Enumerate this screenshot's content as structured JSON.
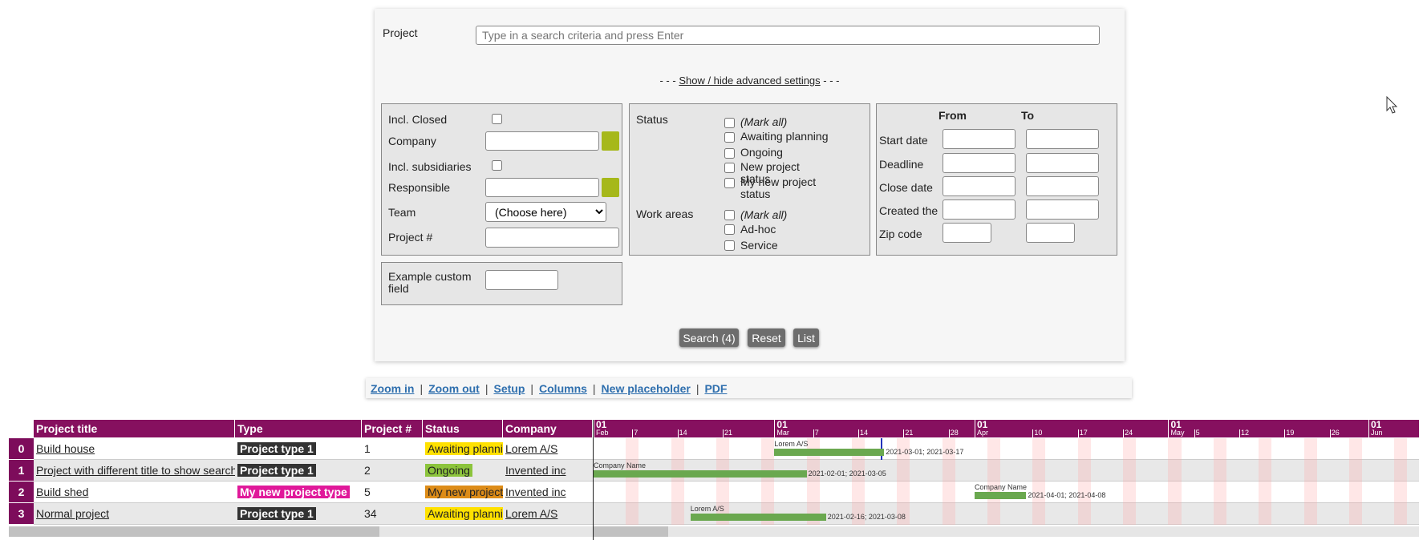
{
  "search": {
    "project_label": "Project",
    "project_placeholder": "Type in a search criteria and press Enter",
    "toggle_prefix": "- - -",
    "toggle_link": "Show / hide advanced settings",
    "toggle_suffix": "- - -",
    "general": {
      "incl_closed": "Incl. Closed",
      "company": "Company",
      "incl_subsidiaries": "Incl. subsidiaries",
      "responsible": "Responsible",
      "team": "Team",
      "team_choice": "(Choose here)",
      "project_no": "Project #"
    },
    "custom_field": "Example custom field",
    "status": {
      "label": "Status",
      "options": [
        "(Mark all)",
        "Awaiting planning",
        "Ongoing",
        "New project status",
        "My new project status"
      ]
    },
    "work_areas": {
      "label": "Work areas",
      "options": [
        "(Mark all)",
        "Ad-hoc",
        "Service"
      ]
    },
    "dates": {
      "from": "From",
      "to": "To",
      "rows": [
        "Start date",
        "Deadline",
        "Close date",
        "Created the",
        "Zip code"
      ]
    },
    "buttons": [
      "Search (4)",
      "Reset",
      "List"
    ]
  },
  "toolbar": [
    "Zoom in",
    "Zoom out",
    "Setup",
    "Columns",
    "New placeholder",
    "PDF"
  ],
  "grid": {
    "columns": [
      "Project title",
      "Type",
      "Project #",
      "Status",
      "Company"
    ],
    "rows": [
      {
        "index": "0",
        "title": "Build house",
        "type": "Project type 1",
        "type_color": "#333333",
        "number": "1",
        "status": "Awaiting plannin",
        "status_color": "#ffe100",
        "company": "Lorem A/S",
        "bar_company": "Lorem A/S",
        "bar_dates": "2021-03-01; 2021-03-17"
      },
      {
        "index": "1",
        "title": "Project with different title to show search be",
        "type": "Project type 1",
        "type_color": "#333333",
        "number": "2",
        "status": "Ongoing",
        "status_color": "#8cc43c",
        "company": "Invented inc",
        "bar_company": "Company Name",
        "bar_dates": "2021-02-01; 2021-03-05"
      },
      {
        "index": "2",
        "title": "Build shed",
        "type": "My new project type",
        "type_color": "#e0199a",
        "number": "5",
        "status": "My new project s",
        "status_color": "#dd8c18",
        "company": "Invented inc",
        "bar_company": "Company Name",
        "bar_dates": "2021-04-01; 2021-04-08"
      },
      {
        "index": "3",
        "title": "Normal project",
        "type": "Project type 1",
        "type_color": "#333333",
        "number": "34",
        "status": "Awaiting plannin",
        "status_color": "#ffe100",
        "company": "Lorem A/S",
        "bar_company": "Lorem A/S",
        "bar_dates": "2021-02-16; 2021-03-08"
      }
    ]
  },
  "gantt": {
    "months": [
      {
        "day": "01",
        "name": "Feb"
      },
      {
        "day": "01",
        "name": "Mar"
      },
      {
        "day": "01",
        "name": "Apr"
      },
      {
        "day": "01",
        "name": "May"
      },
      {
        "day": "01",
        "name": "Jun"
      }
    ],
    "weeks": [
      "7",
      "14",
      "21",
      "7",
      "14",
      "21",
      "28",
      "10",
      "17",
      "24",
      "5",
      "12",
      "19",
      "26"
    ]
  }
}
